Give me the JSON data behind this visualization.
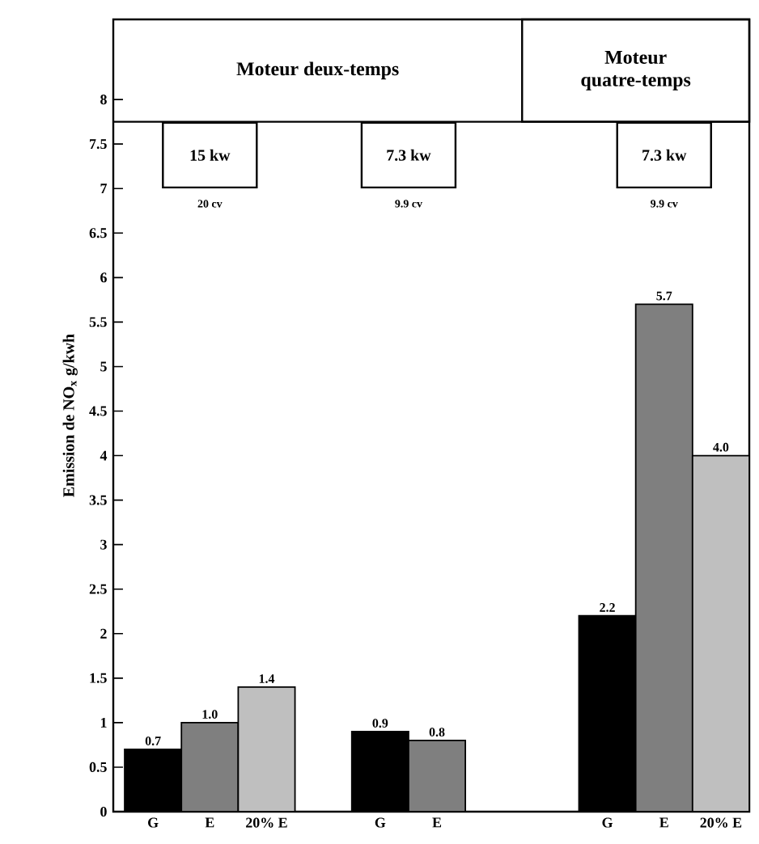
{
  "chart_data": {
    "type": "bar",
    "ylabel": "Emission de NO$_{x}$  g/kwh",
    "categories": [
      "G",
      "E",
      "20% E",
      null,
      "G",
      "E",
      null,
      null,
      "G",
      "E",
      "20% E"
    ],
    "values": [
      0.7,
      1.0,
      1.4,
      null,
      0.9,
      0.8,
      null,
      null,
      2.2,
      5.7,
      4.0
    ],
    "colors": [
      "#000000",
      "#7f7f7f",
      "#bfbfbf",
      null,
      "#000000",
      "#7f7f7f",
      null,
      null,
      "#000000",
      "#7f7f7f",
      "#bfbfbf"
    ],
    "value_labels": [
      "0.7",
      "1.0",
      "1.4",
      null,
      "0.9",
      "0.8",
      null,
      null,
      "2.2",
      "5.7",
      "4.0"
    ],
    "ylim": [
      0,
      8.9
    ],
    "yticks": [
      0,
      0.5,
      1,
      1.5,
      2,
      2.5,
      3,
      3.5,
      4,
      4.5,
      5,
      5.5,
      6,
      6.5,
      7,
      7.5,
      8
    ],
    "ref_lines": [
      {
        "axis": "y",
        "value": 7.75
      }
    ],
    "annotations": [
      "Moteur deux-temps",
      "Moteur quatre-temps",
      "15 kw",
      "20 cv",
      "7.3 kw",
      "9.9 cv",
      "7.3 kw",
      "9.9 cv"
    ]
  }
}
